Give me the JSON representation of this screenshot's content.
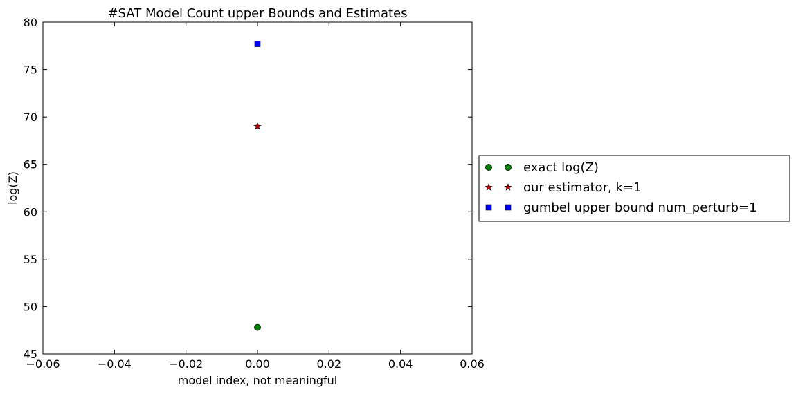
{
  "chart_data": {
    "type": "scatter",
    "title": "#SAT Model Count upper Bounds and Estimates",
    "xlabel": "model index, not meaningful",
    "ylabel": "log(Z)",
    "xlim": [
      -0.06,
      0.06
    ],
    "ylim": [
      45,
      80
    ],
    "xticks": [
      -0.06,
      -0.04,
      -0.02,
      0.0,
      0.02,
      0.04,
      0.06
    ],
    "xtick_labels": [
      "−0.06",
      "−0.04",
      "−0.02",
      "0.00",
      "0.02",
      "0.04",
      "0.06"
    ],
    "yticks": [
      45,
      50,
      55,
      60,
      65,
      70,
      75,
      80
    ],
    "ytick_labels": [
      "45",
      "50",
      "55",
      "60",
      "65",
      "70",
      "75",
      "80"
    ],
    "grid": false,
    "legend_position": "outside-right",
    "series": [
      {
        "name": "exact log(Z)",
        "marker": "circle",
        "color": "#008000",
        "x": [
          0.0
        ],
        "y": [
          47.8
        ]
      },
      {
        "name": "our estimator, k=1",
        "marker": "star",
        "color": "#bf0000",
        "x": [
          0.0
        ],
        "y": [
          69.0
        ]
      },
      {
        "name": "gumbel upper bound num_perturb=1",
        "marker": "square",
        "color": "#0000ff",
        "x": [
          0.0
        ],
        "y": [
          77.7
        ]
      }
    ]
  }
}
